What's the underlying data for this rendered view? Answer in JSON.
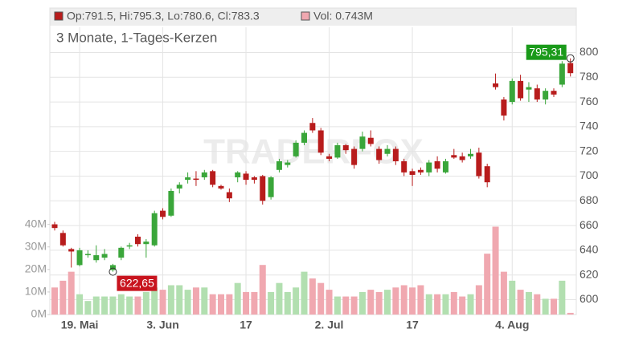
{
  "chart_data": {
    "type": "candlestick",
    "legend": {
      "ohlc_text": "Op:791.5, Hi:795.3, Lo:780.6, Cl:783.3",
      "volume_text": "Vol: 0.743M"
    },
    "subtitle": "3 Monate, 1-Tages-Kerzen",
    "watermark": "TRADERFOX",
    "categories": [
      null,
      null,
      null,
      "19. Mai",
      null,
      null,
      null,
      null,
      null,
      null,
      null,
      null,
      null,
      "3. Jun",
      null,
      null,
      null,
      null,
      null,
      null,
      null,
      null,
      null,
      "17",
      null,
      null,
      null,
      null,
      null,
      null,
      null,
      null,
      null,
      "2. Jul",
      null,
      null,
      null,
      null,
      null,
      null,
      null,
      null,
      null,
      "17",
      null,
      null,
      null,
      null,
      null,
      null,
      null,
      null,
      null,
      null,
      null,
      "4. Aug",
      null,
      null,
      null,
      null,
      null,
      null,
      null
    ],
    "open": [
      661,
      654,
      641,
      628,
      636,
      632,
      634,
      624,
      634,
      643,
      651,
      645,
      644,
      672,
      668,
      690,
      697,
      698,
      699,
      704,
      692,
      687,
      699,
      702,
      699,
      700,
      683,
      705,
      709,
      716,
      727,
      743,
      737,
      716,
      715,
      725,
      722,
      722,
      731,
      722,
      718,
      722,
      712,
      704,
      705,
      703,
      712,
      703,
      717,
      716,
      716,
      719,
      708,
      775,
      762,
      760,
      777,
      770,
      771,
      762,
      769,
      774,
      791.5
    ],
    "high": [
      663,
      656,
      642,
      642,
      640,
      644,
      641,
      629,
      643,
      646,
      653,
      649,
      672,
      674,
      690,
      695,
      703,
      704,
      705,
      705,
      693,
      690,
      704,
      704,
      700,
      701,
      700,
      714,
      713,
      729,
      737,
      747,
      739,
      718,
      727,
      726,
      724,
      736,
      737,
      724,
      725,
      724,
      714,
      706,
      707,
      713,
      716,
      714,
      722,
      719,
      722,
      723,
      710,
      783,
      764,
      779,
      782,
      776,
      774,
      771,
      771,
      793,
      795.3
    ],
    "low": [
      656,
      643,
      626,
      627,
      634,
      630,
      632,
      622.65,
      632,
      641,
      643,
      634,
      643,
      665,
      667,
      686,
      694,
      692,
      697,
      691,
      689,
      679,
      695,
      693,
      694,
      677,
      681,
      703,
      707,
      715,
      725,
      735,
      717,
      712,
      714,
      718,
      706,
      720,
      724,
      710,
      716,
      709,
      700,
      692,
      701,
      700,
      703,
      702,
      714,
      711,
      714,
      698,
      691,
      770,
      745,
      758,
      761,
      760,
      760,
      758,
      764,
      772,
      780.6
    ],
    "close": [
      658,
      644,
      639,
      640,
      637,
      636,
      637,
      628,
      642,
      644,
      645,
      647,
      670,
      667,
      688,
      693,
      699,
      697,
      703,
      693,
      690,
      682,
      703,
      697,
      697,
      680,
      699,
      712,
      711,
      727,
      735,
      737,
      719,
      714,
      725,
      721,
      709,
      732,
      726,
      713,
      722,
      712,
      703,
      701,
      703,
      711,
      706,
      712,
      715,
      713,
      718,
      700,
      695,
      772,
      749,
      777,
      763,
      772,
      762,
      769,
      766,
      791,
      783.3
    ],
    "volume": [
      12,
      15,
      19,
      9,
      6,
      8,
      8,
      8,
      9,
      8,
      8,
      10,
      12,
      11,
      13,
      13,
      11,
      12,
      12,
      9,
      9,
      9,
      14,
      10,
      10,
      22,
      10,
      14,
      10,
      12,
      19,
      16,
      14,
      11,
      8,
      8,
      8,
      10,
      11,
      10,
      11,
      12,
      13,
      12,
      13,
      9,
      9,
      9,
      10,
      8,
      9,
      13,
      27,
      39,
      19,
      15,
      11,
      10,
      9,
      7,
      7,
      15,
      0.743
    ],
    "up_color": "#3aa63a",
    "down_color": "#b81c1c",
    "up_volume_color": "#b2dfb0",
    "down_volume_color": "#f0a8b0",
    "ylim": [
      588,
      836
    ],
    "yticks": [
      600,
      620,
      640,
      660,
      680,
      700,
      720,
      740,
      760,
      780,
      800
    ],
    "y2lim": [
      0,
      136
    ],
    "y2ticks": [
      {
        "value": 0,
        "label": "0M"
      },
      {
        "value": 10,
        "label": "10M"
      },
      {
        "value": 20,
        "label": "20M"
      },
      {
        "value": 30,
        "label": "30M"
      },
      {
        "value": 40,
        "label": "40M"
      }
    ],
    "max_label": {
      "value": 795.31,
      "label": "795,31"
    },
    "min_label": {
      "value": 622.65,
      "label": "622,65"
    },
    "grid": true
  }
}
